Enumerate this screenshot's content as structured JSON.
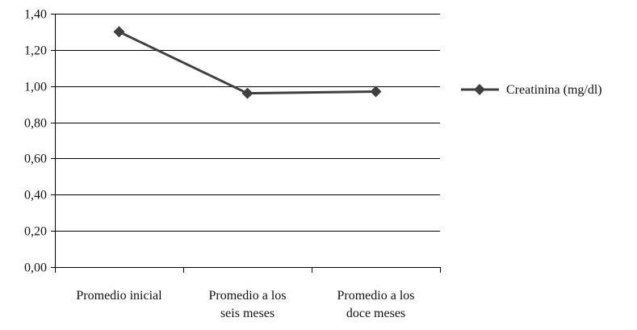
{
  "chart_data": {
    "type": "line",
    "title": "",
    "xlabel": "",
    "ylabel": "",
    "categories": [
      [
        "Promedio inicial"
      ],
      [
        "Promedio a los",
        "seis meses"
      ],
      [
        "Promedio a los",
        "doce meses"
      ]
    ],
    "series": [
      {
        "name": "Creatinina (mg/dl)",
        "values": [
          1.3,
          0.96,
          0.97
        ],
        "color": "#3f3f3f",
        "marker": "diamond"
      }
    ],
    "ylim": [
      0,
      1.4
    ],
    "yticks": [
      0,
      0.2,
      0.4,
      0.6,
      0.8,
      1.0,
      1.2,
      1.4
    ],
    "ytick_labels": [
      "0,00",
      "0,20",
      "0,40",
      "0,60",
      "0,80",
      "1,00",
      "1,20",
      "1,40"
    ],
    "grid": true,
    "legend_position": "right"
  }
}
